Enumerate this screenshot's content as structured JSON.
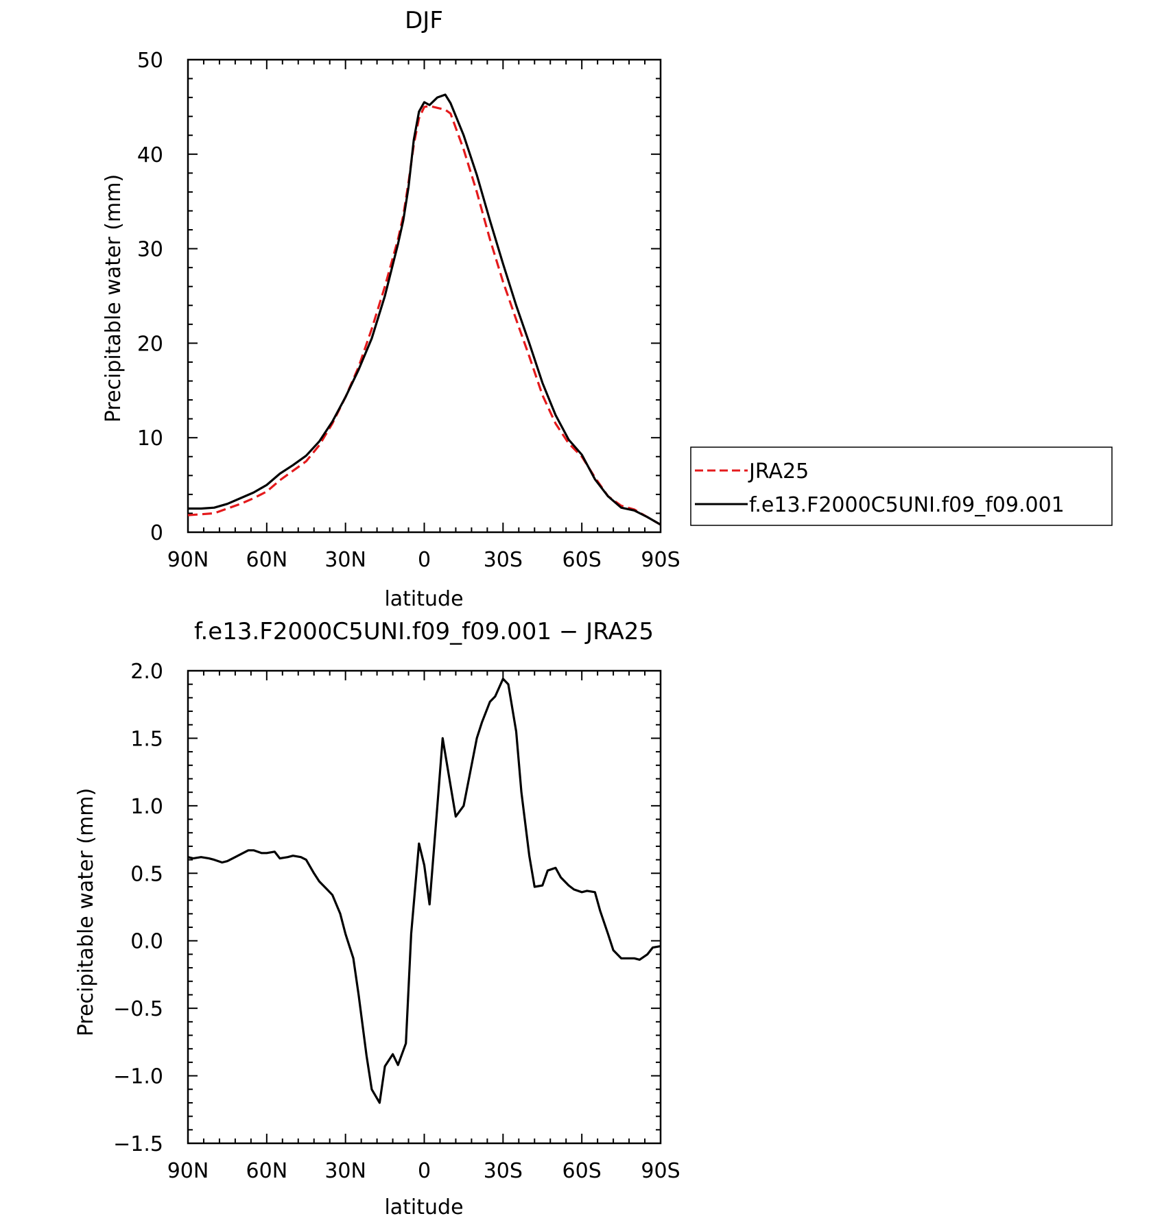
{
  "chart_data": [
    {
      "type": "line",
      "title": "DJF",
      "xlabel": "latitude",
      "ylabel": "Precipitable water (mm)",
      "xlim": [
        90,
        -90
      ],
      "ylim": [
        0,
        50
      ],
      "x_ticks": [
        90,
        60,
        30,
        0,
        -30,
        -60,
        -90
      ],
      "x_tick_labels": [
        "90N",
        "60N",
        "30N",
        "0",
        "30S",
        "60S",
        "90S"
      ],
      "y_ticks": [
        0,
        10,
        20,
        30,
        40,
        50
      ],
      "y_tick_labels": [
        "0",
        "10",
        "20",
        "30",
        "40",
        "50"
      ],
      "legend_position": "right",
      "series": [
        {
          "name": "JRA25",
          "color": "#e41a1c",
          "dash": "dashed",
          "x": [
            90,
            85,
            80,
            75,
            70,
            65,
            60,
            55,
            50,
            45,
            40,
            35,
            30,
            25,
            20,
            15,
            10,
            8,
            6,
            4,
            2,
            0,
            -2,
            -5,
            -8,
            -10,
            -15,
            -20,
            -25,
            -30,
            -35,
            -40,
            -45,
            -50,
            -55,
            -60,
            -65,
            -70,
            -75,
            -80,
            -85,
            -90
          ],
          "y": [
            1.8,
            1.9,
            2.0,
            2.5,
            3.0,
            3.6,
            4.3,
            5.5,
            6.5,
            7.5,
            9.2,
            11.5,
            14.3,
            17.5,
            21.5,
            26.0,
            31.0,
            33.5,
            37.0,
            41.0,
            43.8,
            45.0,
            45.1,
            44.9,
            44.7,
            44.3,
            40.5,
            36.0,
            31.0,
            26.5,
            22.5,
            18.6,
            14.5,
            11.5,
            9.4,
            8.0,
            5.8,
            3.8,
            2.8,
            2.4,
            1.6,
            0.8
          ]
        },
        {
          "name": "f.e13.F2000C5UNI.f09_f09.001",
          "color": "#000000",
          "dash": "solid",
          "x": [
            90,
            85,
            80,
            75,
            70,
            65,
            60,
            55,
            50,
            45,
            40,
            35,
            30,
            25,
            20,
            15,
            10,
            8,
            6,
            4,
            2,
            0,
            -2,
            -5,
            -8,
            -10,
            -15,
            -20,
            -25,
            -30,
            -35,
            -40,
            -45,
            -50,
            -55,
            -60,
            -65,
            -70,
            -75,
            -80,
            -85,
            -90
          ],
          "y": [
            2.5,
            2.5,
            2.6,
            3.0,
            3.6,
            4.2,
            5.0,
            6.2,
            7.1,
            8.1,
            9.6,
            11.7,
            14.3,
            17.2,
            20.5,
            25.0,
            30.5,
            33.0,
            36.5,
            41.5,
            44.5,
            45.5,
            45.2,
            46.0,
            46.3,
            45.4,
            42.0,
            37.8,
            33.0,
            28.4,
            24.0,
            20.0,
            15.8,
            12.4,
            9.8,
            8.2,
            5.6,
            3.8,
            2.6,
            2.3,
            1.6,
            0.8
          ]
        }
      ]
    },
    {
      "type": "line",
      "title": "f.e13.F2000C5UNI.f09_f09.001 − JRA25",
      "xlabel": "latitude",
      "ylabel": "Precipitable water (mm)",
      "xlim": [
        90,
        -90
      ],
      "ylim": [
        -1.5,
        2.0
      ],
      "x_ticks": [
        90,
        60,
        30,
        0,
        -30,
        -60,
        -90
      ],
      "x_tick_labels": [
        "90N",
        "60N",
        "30N",
        "0",
        "30S",
        "60S",
        "90S"
      ],
      "y_ticks": [
        -1.5,
        -1.0,
        -0.5,
        0.0,
        0.5,
        1.0,
        1.5,
        2.0
      ],
      "y_tick_labels": [
        "−1.5",
        "−1.0",
        "−0.5",
        "0.0",
        "0.5",
        "1.0",
        "1.5",
        "2.0"
      ],
      "series": [
        {
          "color": "#000000",
          "dash": "solid",
          "x": [
            90,
            88,
            85,
            82,
            80,
            77,
            75,
            72,
            70,
            67,
            65,
            62,
            60,
            57,
            55,
            52,
            50,
            47,
            45,
            42,
            40,
            37,
            35,
            32,
            30,
            27,
            25,
            22,
            20,
            17,
            15,
            12,
            10,
            7,
            5,
            2,
            0,
            -2,
            -5,
            -7,
            -10,
            -12,
            -15,
            -17,
            -20,
            -22,
            -25,
            -27,
            -30,
            -32,
            -35,
            -37,
            -40,
            -42,
            -45,
            -47,
            -50,
            -52,
            -55,
            -57,
            -60,
            -62,
            -65,
            -67,
            -70,
            -72,
            -75,
            -77,
            -80,
            -82,
            -85,
            -87,
            -90
          ],
          "y": [
            0.62,
            0.61,
            0.62,
            0.61,
            0.6,
            0.58,
            0.59,
            0.62,
            0.64,
            0.67,
            0.67,
            0.65,
            0.65,
            0.66,
            0.61,
            0.62,
            0.63,
            0.62,
            0.6,
            0.5,
            0.44,
            0.38,
            0.34,
            0.2,
            0.05,
            -0.13,
            -0.4,
            -0.85,
            -1.1,
            -1.2,
            -0.93,
            -0.84,
            -0.92,
            -0.76,
            0.05,
            0.72,
            0.56,
            0.27,
            1.0,
            1.5,
            1.15,
            0.92,
            1.0,
            1.2,
            1.5,
            1.62,
            1.77,
            1.81,
            1.94,
            1.9,
            1.55,
            1.1,
            0.63,
            0.4,
            0.41,
            0.52,
            0.54,
            0.47,
            0.41,
            0.38,
            0.36,
            0.37,
            0.36,
            0.22,
            0.05,
            -0.07,
            -0.13,
            -0.13,
            -0.13,
            -0.14,
            -0.1,
            -0.05,
            -0.04
          ]
        }
      ]
    }
  ]
}
